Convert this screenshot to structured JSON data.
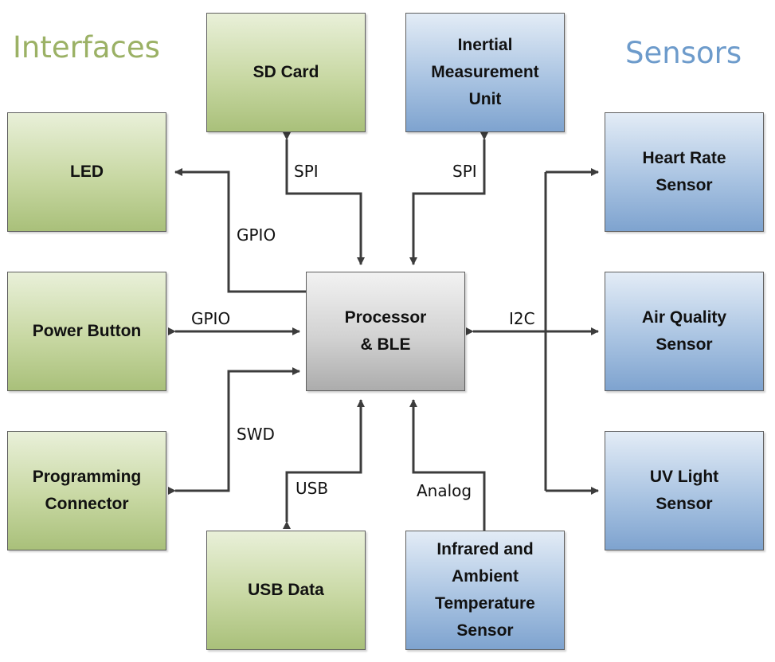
{
  "headings": {
    "interfaces": "Interfaces",
    "sensors": "Sensors"
  },
  "colors": {
    "interfaces_heading": "#9bb165",
    "sensors_heading": "#6d9bcb",
    "connector": "#3c3c3c"
  },
  "center": {
    "label": "Processor\n& BLE"
  },
  "interfaces": {
    "sd_card": "SD Card",
    "led": "LED",
    "power_button": "Power Button",
    "programming_connector": "Programming\nConnector",
    "usb_data": "USB Data"
  },
  "sensors": {
    "imu": "Inertial\nMeasurement\nUnit",
    "heart_rate": "Heart Rate\nSensor",
    "air_quality": "Air Quality\nSensor",
    "uv_light": "UV Light\nSensor",
    "ir_temp": "Infrared and\nAmbient\nTemperature\nSensor"
  },
  "links": {
    "spi_sd": "SPI",
    "spi_imu": "SPI",
    "gpio_led": "GPIO",
    "gpio_button": "GPIO",
    "swd": "SWD",
    "usb": "USB",
    "analog": "Analog",
    "i2c": "I2C"
  }
}
